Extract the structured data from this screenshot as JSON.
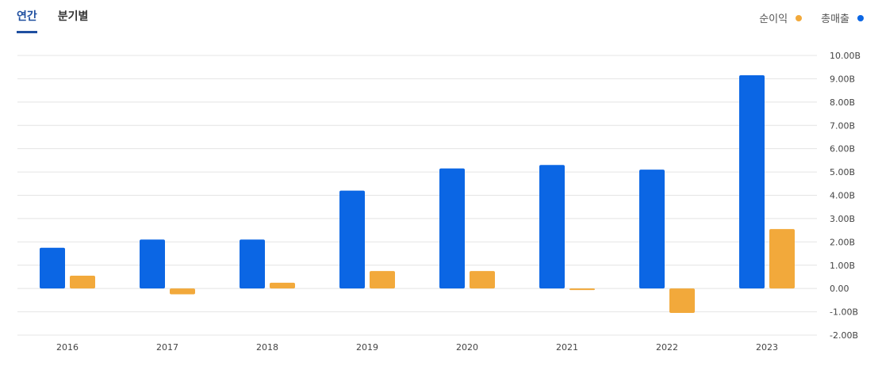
{
  "tabs": [
    {
      "label": "연간",
      "active": true
    },
    {
      "label": "분기별",
      "active": false
    }
  ],
  "legend": [
    {
      "label": "순이익",
      "color": "#f2a93b"
    },
    {
      "label": "총매출",
      "color": "#0b66e4"
    }
  ],
  "chart_data": {
    "type": "bar",
    "categories": [
      "2016",
      "2017",
      "2018",
      "2019",
      "2020",
      "2021",
      "2022",
      "2023"
    ],
    "series": [
      {
        "name": "총매출",
        "color": "#0b66e4",
        "values": [
          1.75,
          2.1,
          2.1,
          4.2,
          5.15,
          5.3,
          5.1,
          9.15
        ]
      },
      {
        "name": "순이익",
        "color": "#f2a93b",
        "values": [
          0.55,
          -0.25,
          0.25,
          0.75,
          0.75,
          -0.05,
          -1.05,
          2.55
        ]
      }
    ],
    "y_ticks": [
      "10.00B",
      "9.00B",
      "8.00B",
      "7.00B",
      "6.00B",
      "5.00B",
      "4.00B",
      "3.00B",
      "2.00B",
      "1.00B",
      "0.00",
      "-1.00B",
      "-2.00B"
    ],
    "ylim": [
      -2,
      10
    ],
    "grid": true,
    "legend_position": "top-right"
  }
}
